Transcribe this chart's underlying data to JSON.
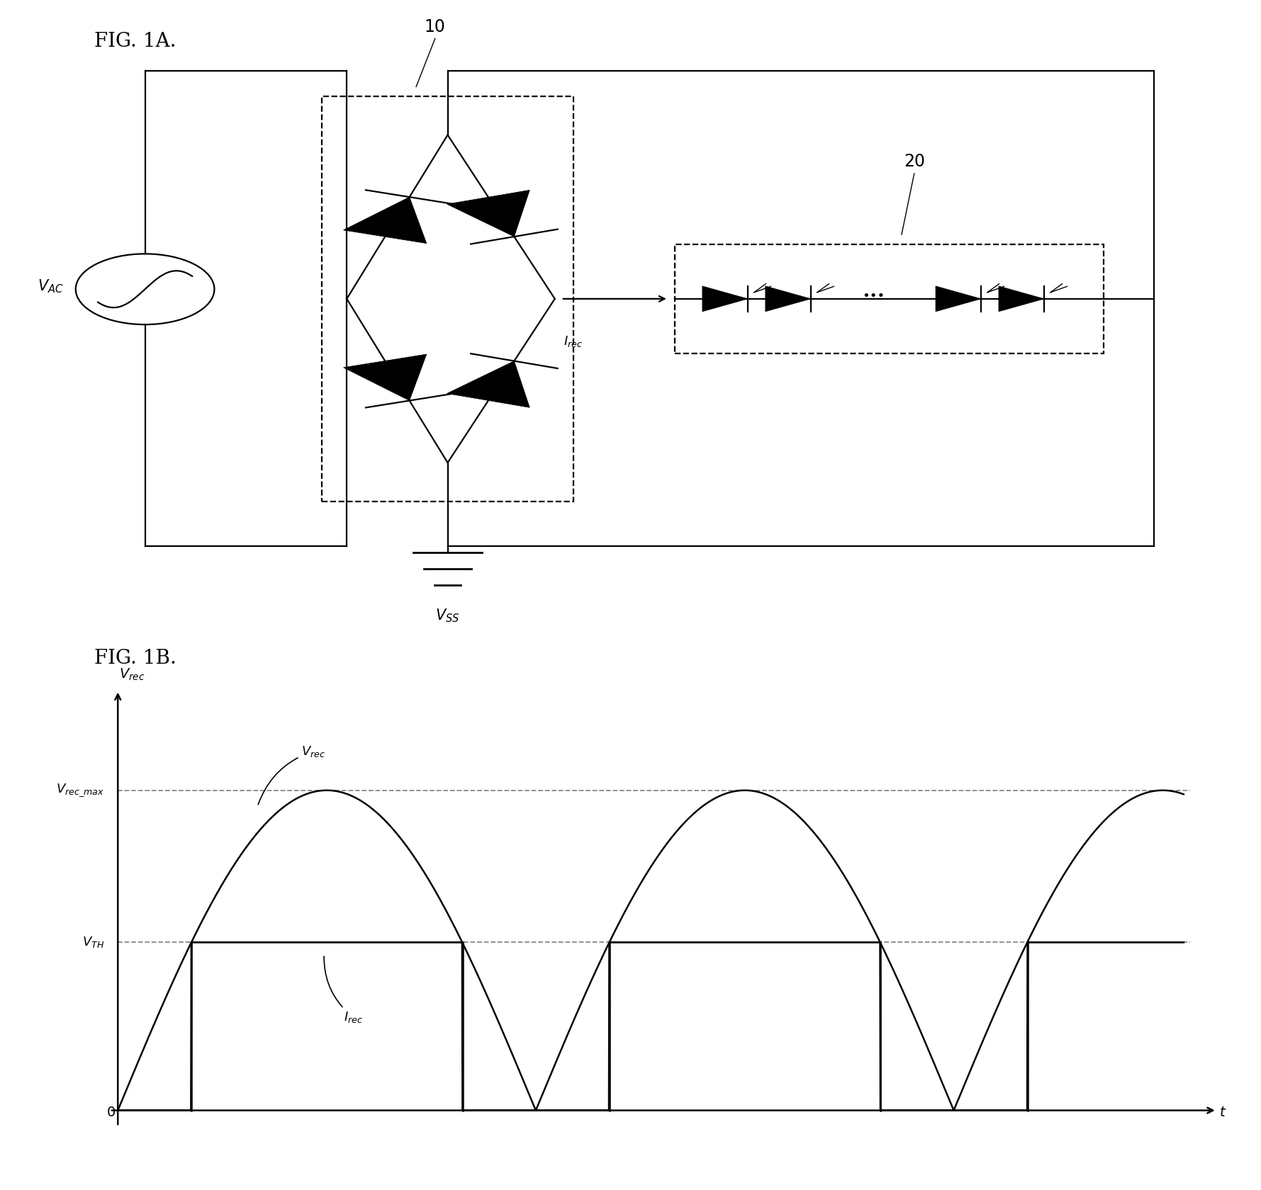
{
  "fig_label_1a": "FIG. 1A.",
  "fig_label_1b": "FIG. 1B.",
  "label_10": "10",
  "label_20": "20",
  "label_vac": "$V_{AC}$",
  "label_vss": "$V_{SS}$",
  "label_irec_circ": "$I_{rec}$",
  "label_vrec_axis": "$V_{rec}$",
  "label_vrec_curve": "$V_{rec}$",
  "label_irec_curve": "$I_{rec}$",
  "label_vrec_max": "$V_{rec\\_max}$",
  "label_vth": "$V_{TH}$",
  "label_t": "t",
  "label_0": "0",
  "bg_color": "#ffffff",
  "vth_level": 0.42,
  "vrec_max_level": 0.8,
  "pi": 3.14159265358979
}
